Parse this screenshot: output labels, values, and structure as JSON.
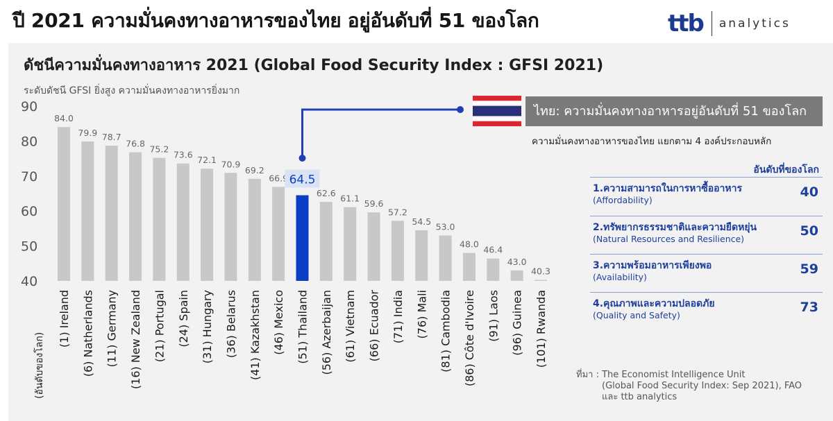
{
  "header": {
    "title": "ปี 2021 ความมั่นคงทางอาหารของไทย อยู่อันดับที่ 51 ของโลก",
    "logo_mark": "ttb",
    "logo_word": "analytics"
  },
  "chart_data": {
    "type": "bar",
    "title": "ดัชนีความมั่นคงทางอาหาร 2021 (Global Food Security Index : GFSI 2021)",
    "subtitle": "ระดับดัชนี GFSI  ยิ่งสูง ความมั่นคงทางอาหารยิ่งมาก",
    "xlabel": "(อันดับของโลก)",
    "ylim": [
      40,
      90
    ],
    "yticks": [
      40,
      50,
      60,
      70,
      80,
      90
    ],
    "categories": [
      "(1) Ireland",
      "(6) Natherlands",
      "(11) Germany",
      "(16) New Zealand",
      "(21) Portugal",
      "(24) Spain",
      "(31) Hungary",
      "(36) Belarus",
      "(41) Kazakhstan",
      "(46) Mexico",
      "(51) Thailand",
      "(56) Azerbaijan",
      "(61) Vietnam",
      "(66) Ecuador",
      "(71) India",
      "(76) Mali",
      "(81) Cambodia",
      "(86) Côte d'Ivoire",
      "(91) Laos",
      "(96) Guinea",
      "(101) Rwanda"
    ],
    "values": [
      84.0,
      79.9,
      78.7,
      76.8,
      75.2,
      73.6,
      72.1,
      70.9,
      69.2,
      66.9,
      64.5,
      62.6,
      61.1,
      59.6,
      57.2,
      54.5,
      53.0,
      48.0,
      46.4,
      43.0,
      40.3
    ],
    "value_labels": [
      "84.0",
      "79.9",
      "78.7",
      "76.8",
      "75.2",
      "73.6",
      "72.1",
      "70.9",
      "69.2",
      "66.9",
      "64.5",
      "62.6",
      "61.1",
      "59.6",
      "57.2",
      "54.5",
      "53.0",
      "48.0",
      "46.4",
      "43.0",
      "40.3"
    ],
    "highlight_category": "(51) Thailand",
    "colors": {
      "bar": "#c8c8c8",
      "highlight": "#0b3ec4",
      "connector": "#1f3fb3"
    },
    "grid": false
  },
  "callout": {
    "text": "ไทย: ความมั่นคงทางอาหารอยู่อันดับที่  51 ของโลก"
  },
  "breakdown": {
    "title": "ความมั่นคงทางอาหารของไทย  แยกตาม 4 องค์ประกอบหลัก",
    "rank_header": "อันดับที่ของโลก",
    "items": [
      {
        "label_th": "1.ความสามารถในการหาซื้ออาหาร",
        "label_en": "(Affordability)",
        "rank": "40"
      },
      {
        "label_th": "2.ทรัพยากรธรรมชาติและความยืดหยุ่น",
        "label_en": "(Natural Resources and Resilience)",
        "rank": "50"
      },
      {
        "label_th": "3.ความพร้อมอาหารเพียงพอ",
        "label_en": "(Availability)",
        "rank": "59"
      },
      {
        "label_th": "4.คุณภาพและความปลอดภัย",
        "label_en": "(Quality and Safety)",
        "rank": "73"
      }
    ]
  },
  "source": {
    "line1": "ที่มา : The Economist Intelligence Unit",
    "line2": "(Global Food Security Index: Sep 2021), FAO",
    "line3": "และ ttb analytics"
  }
}
